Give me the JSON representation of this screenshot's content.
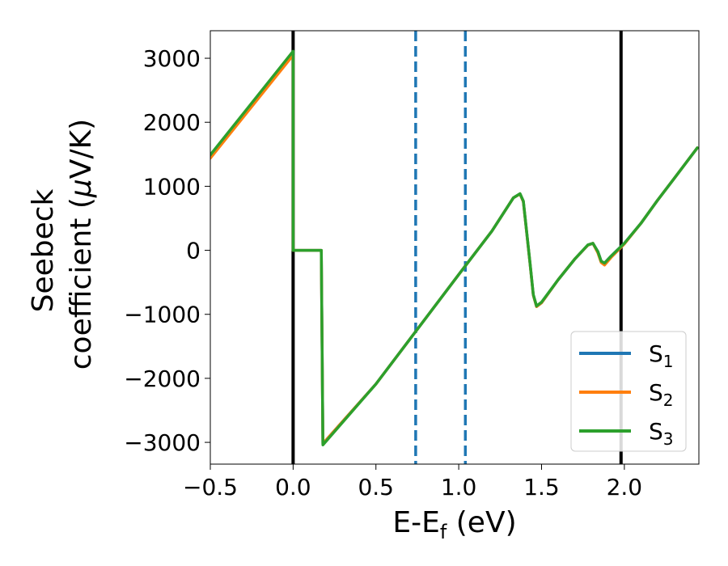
{
  "chart_data": {
    "type": "line",
    "xlabel": "E-E",
    "xlabel_sub": "f",
    "xlabel_unit": " (eV)",
    "ylabel_line1": "Seebeck",
    "ylabel_line2_pre": "coefficient  (",
    "ylabel_mu": "μ",
    "ylabel_line2_post": "V/K)",
    "xlim": [
      -0.5,
      2.45
    ],
    "ylim": [
      -3340,
      3430
    ],
    "x_ticks": [
      -0.5,
      0.0,
      0.5,
      1.0,
      1.5,
      2.0
    ],
    "x_tick_labels": [
      "−0.5",
      "0.0",
      "0.5",
      "1.0",
      "1.5",
      "2.0"
    ],
    "y_ticks": [
      3000,
      2000,
      1000,
      0,
      -1000,
      -2000,
      -3000
    ],
    "y_tick_labels": [
      "3000",
      "2000",
      "1000",
      "0",
      "−1000",
      "−2000",
      "−3000"
    ],
    "grid": false,
    "legend_position": "bottom-right",
    "vertical_lines": [
      {
        "x": 0.0,
        "style": "solid",
        "color": "#000000"
      },
      {
        "x": 0.74,
        "style": "dashed",
        "color": "#1f77b4"
      },
      {
        "x": 1.04,
        "style": "dashed",
        "color": "#1f77b4"
      },
      {
        "x": 1.98,
        "style": "solid",
        "color": "#000000"
      }
    ],
    "series": [
      {
        "name": "S",
        "sub": "1",
        "color": "#1f77b4",
        "points": [
          [
            -0.5,
            1480
          ],
          [
            0.0,
            3090
          ],
          [
            0.0,
            0
          ],
          [
            0.17,
            0
          ],
          [
            0.18,
            -3020
          ],
          [
            0.5,
            -2090
          ],
          [
            1.0,
            -380
          ],
          [
            1.2,
            300
          ],
          [
            1.33,
            820
          ],
          [
            1.37,
            880
          ],
          [
            1.39,
            760
          ],
          [
            1.43,
            -200
          ],
          [
            1.45,
            -700
          ],
          [
            1.47,
            -880
          ],
          [
            1.5,
            -820
          ],
          [
            1.6,
            -460
          ],
          [
            1.7,
            -140
          ],
          [
            1.78,
            80
          ],
          [
            1.81,
            110
          ],
          [
            1.84,
            -20
          ],
          [
            1.86,
            -170
          ],
          [
            1.88,
            -200
          ],
          [
            1.92,
            -90
          ],
          [
            2.0,
            110
          ],
          [
            2.1,
            420
          ],
          [
            2.2,
            780
          ],
          [
            2.3,
            1120
          ],
          [
            2.44,
            1600
          ]
        ]
      },
      {
        "name": "S",
        "sub": "2",
        "color": "#ff7f0e",
        "points": [
          [
            -0.5,
            1440
          ],
          [
            0.0,
            3050
          ],
          [
            0.0,
            0
          ],
          [
            0.17,
            0
          ],
          [
            0.18,
            -3020
          ],
          [
            0.5,
            -2090
          ],
          [
            1.0,
            -380
          ],
          [
            1.2,
            300
          ],
          [
            1.33,
            820
          ],
          [
            1.37,
            880
          ],
          [
            1.39,
            760
          ],
          [
            1.43,
            -200
          ],
          [
            1.45,
            -700
          ],
          [
            1.47,
            -880
          ],
          [
            1.5,
            -820
          ],
          [
            1.6,
            -460
          ],
          [
            1.7,
            -140
          ],
          [
            1.78,
            80
          ],
          [
            1.81,
            110
          ],
          [
            1.84,
            -40
          ],
          [
            1.86,
            -190
          ],
          [
            1.88,
            -230
          ],
          [
            1.92,
            -110
          ],
          [
            2.0,
            100
          ],
          [
            2.1,
            420
          ],
          [
            2.2,
            780
          ],
          [
            2.3,
            1120
          ],
          [
            2.44,
            1600
          ]
        ]
      },
      {
        "name": "S",
        "sub": "3",
        "color": "#2ca02c",
        "points": [
          [
            -0.5,
            1490
          ],
          [
            0.0,
            3110
          ],
          [
            0.0,
            0
          ],
          [
            0.17,
            0
          ],
          [
            0.18,
            -3040
          ],
          [
            0.5,
            -2090
          ],
          [
            1.0,
            -380
          ],
          [
            1.2,
            300
          ],
          [
            1.33,
            820
          ],
          [
            1.37,
            885
          ],
          [
            1.39,
            770
          ],
          [
            1.43,
            -190
          ],
          [
            1.45,
            -690
          ],
          [
            1.47,
            -870
          ],
          [
            1.5,
            -810
          ],
          [
            1.6,
            -460
          ],
          [
            1.7,
            -140
          ],
          [
            1.78,
            85
          ],
          [
            1.81,
            110
          ],
          [
            1.84,
            -20
          ],
          [
            1.86,
            -170
          ],
          [
            1.88,
            -200
          ],
          [
            1.92,
            -90
          ],
          [
            2.0,
            110
          ],
          [
            2.1,
            420
          ],
          [
            2.2,
            780
          ],
          [
            2.3,
            1120
          ],
          [
            2.44,
            1600
          ]
        ]
      }
    ]
  }
}
